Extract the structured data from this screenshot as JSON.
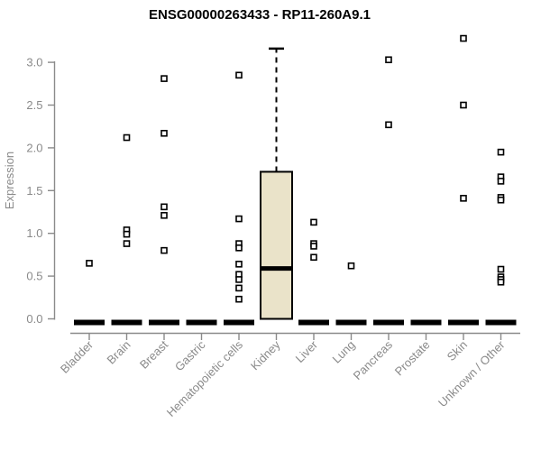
{
  "chart_data": {
    "type": "boxplot",
    "title": "ENSG00000263433 - RP11-260A9.1",
    "ylabel": "Expression",
    "xlabel": "",
    "ylim": [
      0.0,
      3.3
    ],
    "yticks": [
      0.0,
      0.5,
      1.0,
      1.5,
      2.0,
      2.5,
      3.0
    ],
    "grid": false,
    "legend": "none",
    "colors": {
      "box_fill": "#eae3c9",
      "box_stroke": "#000000",
      "axis": "#8a8a8a",
      "axis_text": "#8a8a8a",
      "title_text": "#000000",
      "outlier_fill": "#ffffff",
      "outlier_stroke": "#000000",
      "background": "#ffffff"
    },
    "categories": [
      "Bladder",
      "Brain",
      "Breast",
      "Gastric",
      "Hematopoietic cells",
      "Kidney",
      "Liver",
      "Lung",
      "Pancreas",
      "Prostate",
      "Skin",
      "Unknown / Other"
    ],
    "boxes": [
      {
        "category": "Bladder",
        "q1": 0,
        "median": 0,
        "q3": 0,
        "whisker_low": 0,
        "whisker_high": 0,
        "outliers": [
          0.65
        ]
      },
      {
        "category": "Brain",
        "q1": 0,
        "median": 0,
        "q3": 0,
        "whisker_low": 0,
        "whisker_high": 0,
        "outliers": [
          2.12,
          1.04,
          0.99,
          0.88
        ]
      },
      {
        "category": "Breast",
        "q1": 0,
        "median": 0,
        "q3": 0,
        "whisker_low": 0,
        "whisker_high": 0,
        "outliers": [
          2.81,
          2.17,
          1.31,
          1.21,
          0.8
        ]
      },
      {
        "category": "Gastric",
        "q1": 0,
        "median": 0,
        "q3": 0,
        "whisker_low": 0,
        "whisker_high": 0,
        "outliers": []
      },
      {
        "category": "Hematopoietic cells",
        "q1": 0,
        "median": 0,
        "q3": 0,
        "whisker_low": 0,
        "whisker_high": 0,
        "outliers": [
          2.85,
          1.17,
          0.88,
          0.83,
          0.64,
          0.52,
          0.46,
          0.36,
          0.23
        ]
      },
      {
        "category": "Kidney",
        "q1": 0.0,
        "median": 0.59,
        "q3": 1.72,
        "whisker_low": 0.0,
        "whisker_high": 3.16,
        "outliers": []
      },
      {
        "category": "Liver",
        "q1": 0,
        "median": 0,
        "q3": 0,
        "whisker_low": 0,
        "whisker_high": 0,
        "outliers": [
          1.13,
          0.88,
          0.85,
          0.72
        ]
      },
      {
        "category": "Lung",
        "q1": 0,
        "median": 0,
        "q3": 0,
        "whisker_low": 0,
        "whisker_high": 0,
        "outliers": [
          0.62
        ]
      },
      {
        "category": "Pancreas",
        "q1": 0,
        "median": 0,
        "q3": 0,
        "whisker_low": 0,
        "whisker_high": 0,
        "outliers": [
          3.03,
          2.27
        ]
      },
      {
        "category": "Prostate",
        "q1": 0,
        "median": 0,
        "q3": 0,
        "whisker_low": 0,
        "whisker_high": 0,
        "outliers": []
      },
      {
        "category": "Skin",
        "q1": 0,
        "median": 0,
        "q3": 0,
        "whisker_low": 0,
        "whisker_high": 0,
        "outliers": [
          3.28,
          2.5,
          1.41
        ]
      },
      {
        "category": "Unknown / Other",
        "q1": 0,
        "median": 0,
        "q3": 0,
        "whisker_low": 0,
        "whisker_high": 0,
        "outliers": [
          1.95,
          1.66,
          1.61,
          1.42,
          1.39,
          0.58,
          0.49,
          0.46,
          0.43
        ]
      }
    ]
  }
}
